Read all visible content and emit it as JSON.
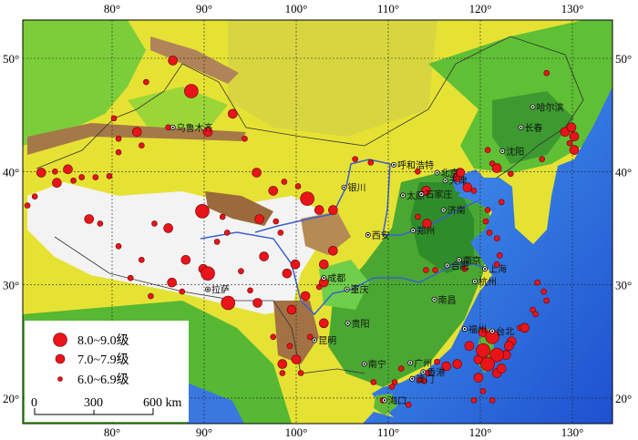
{
  "map": {
    "projection_note_hidden": null,
    "lon_ticks": [
      80,
      90,
      100,
      110,
      120,
      130
    ],
    "lat_ticks": [
      20,
      30,
      40,
      50
    ],
    "lon_labels": [
      "80°",
      "90°",
      "100°",
      "110°",
      "120°",
      "130°"
    ],
    "lat_labels": [
      "20°",
      "30°",
      "40°",
      "50°"
    ],
    "colors": {
      "earthquake": "#e8141a",
      "earthquake_edge": "#6a0000",
      "ocean": "#2f6fe0",
      "lowland": "#3fa52f",
      "plain": "#8fd230",
      "plateau": "#ece63a",
      "high_mountain": "#f2f2f2",
      "desert_brown": "#9b6a3c",
      "river": "#3a5fd0"
    }
  },
  "legend": {
    "items": [
      {
        "label": "8.0~9.0级",
        "class": 3
      },
      {
        "label": "7.0~7.9级",
        "class": 2
      },
      {
        "label": "6.0~6.9级",
        "class": 1
      }
    ],
    "scale_bar": {
      "ticks": [
        "0",
        "300",
        "600 km"
      ]
    }
  },
  "cities": [
    {
      "name": "乌鲁木齐",
      "lon": 86.6,
      "lat": 43.9
    },
    {
      "name": "拉萨",
      "lon": 90.4,
      "lat": 29.6
    },
    {
      "name": "银川",
      "lon": 105.2,
      "lat": 38.6
    },
    {
      "name": "呼和浩特",
      "lon": 110.6,
      "lat": 40.6
    },
    {
      "name": "太原",
      "lon": 111.6,
      "lat": 37.9
    },
    {
      "name": "石家庄",
      "lon": 113.6,
      "lat": 38.0
    },
    {
      "name": "北京",
      "lon": 115.3,
      "lat": 39.9
    },
    {
      "name": "天津",
      "lon": 116.2,
      "lat": 39.2
    },
    {
      "name": "济南",
      "lon": 116.0,
      "lat": 36.6
    },
    {
      "name": "沈阳",
      "lon": 122.4,
      "lat": 41.8
    },
    {
      "name": "长春",
      "lon": 124.4,
      "lat": 43.9
    },
    {
      "name": "哈尔滨",
      "lon": 125.7,
      "lat": 45.7
    },
    {
      "name": "西安",
      "lon": 107.8,
      "lat": 34.4
    },
    {
      "name": "郑州",
      "lon": 112.7,
      "lat": 34.8
    },
    {
      "name": "合肥",
      "lon": 116.4,
      "lat": 31.7
    },
    {
      "name": "南京",
      "lon": 117.7,
      "lat": 32.2
    },
    {
      "name": "上海",
      "lon": 120.5,
      "lat": 31.4
    },
    {
      "name": "杭州",
      "lon": 119.4,
      "lat": 30.3
    },
    {
      "name": "南昌",
      "lon": 115.0,
      "lat": 28.7
    },
    {
      "name": "成都",
      "lon": 103.0,
      "lat": 30.6
    },
    {
      "name": "重庆",
      "lon": 105.5,
      "lat": 29.6
    },
    {
      "name": "贵阳",
      "lon": 105.6,
      "lat": 26.6
    },
    {
      "name": "昆明",
      "lon": 102.0,
      "lat": 25.1
    },
    {
      "name": "福州",
      "lon": 118.3,
      "lat": 26.1
    },
    {
      "name": "台北",
      "lon": 121.3,
      "lat": 25.9
    },
    {
      "name": "南宁",
      "lon": 107.4,
      "lat": 23.0
    },
    {
      "name": "广州",
      "lon": 112.4,
      "lat": 23.1
    },
    {
      "name": "香港",
      "lon": 113.8,
      "lat": 22.3
    },
    {
      "name": "澳门",
      "lon": 112.6,
      "lat": 21.7
    },
    {
      "name": "海口",
      "lon": 109.6,
      "lat": 19.8
    }
  ],
  "earthquakes": [
    {
      "lon": 86.6,
      "lat": 49.8,
      "c": 2
    },
    {
      "lon": 88.6,
      "lat": 47.1,
      "c": 3
    },
    {
      "lon": 93.1,
      "lat": 45.1,
      "c": 2
    },
    {
      "lon": 90.4,
      "lat": 43.5,
      "c": 2
    },
    {
      "lon": 83.7,
      "lat": 47.9,
      "c": 1
    },
    {
      "lon": 80.2,
      "lat": 44.7,
      "c": 1
    },
    {
      "lon": 82.7,
      "lat": 43.5,
      "c": 2
    },
    {
      "lon": 83.2,
      "lat": 42.3,
      "c": 1
    },
    {
      "lon": 86.1,
      "lat": 43.9,
      "c": 1
    },
    {
      "lon": 94.4,
      "lat": 42.9,
      "c": 1
    },
    {
      "lon": 72.3,
      "lat": 39.9,
      "c": 2
    },
    {
      "lon": 73.8,
      "lat": 40.0,
      "c": 1
    },
    {
      "lon": 75.2,
      "lat": 40.2,
      "c": 2
    },
    {
      "lon": 76.7,
      "lat": 39.5,
      "c": 1
    },
    {
      "lon": 78.2,
      "lat": 39.5,
      "c": 1
    },
    {
      "lon": 71.6,
      "lat": 37.8,
      "c": 1
    },
    {
      "lon": 79.7,
      "lat": 39.6,
      "c": 1
    },
    {
      "lon": 70.8,
      "lat": 37.0,
      "c": 1
    },
    {
      "lon": 89.8,
      "lat": 36.5,
      "c": 3
    },
    {
      "lon": 86.1,
      "lat": 35.0,
      "c": 2
    },
    {
      "lon": 84.6,
      "lat": 35.4,
      "c": 1
    },
    {
      "lon": 77.5,
      "lat": 35.8,
      "c": 2
    },
    {
      "lon": 78.7,
      "lat": 35.4,
      "c": 1
    },
    {
      "lon": 95.7,
      "lat": 39.9,
      "c": 2
    },
    {
      "lon": 97.5,
      "lat": 38.3,
      "c": 2
    },
    {
      "lon": 101.2,
      "lat": 37.6,
      "c": 3
    },
    {
      "lon": 102.5,
      "lat": 36.6,
      "c": 2
    },
    {
      "lon": 104.0,
      "lat": 36.6,
      "c": 2
    },
    {
      "lon": 97.8,
      "lat": 35.6,
      "c": 1
    },
    {
      "lon": 96.0,
      "lat": 35.8,
      "c": 2
    },
    {
      "lon": 98.3,
      "lat": 34.6,
      "c": 1
    },
    {
      "lon": 92.5,
      "lat": 34.6,
      "c": 1
    },
    {
      "lon": 91.4,
      "lat": 33.8,
      "c": 1
    },
    {
      "lon": 90.4,
      "lat": 31.0,
      "c": 3
    },
    {
      "lon": 89.9,
      "lat": 31.4,
      "c": 2
    },
    {
      "lon": 88.0,
      "lat": 32.2,
      "c": 2
    },
    {
      "lon": 83.2,
      "lat": 32.2,
      "c": 1
    },
    {
      "lon": 80.7,
      "lat": 33.4,
      "c": 1
    },
    {
      "lon": 84.2,
      "lat": 29.0,
      "c": 1
    },
    {
      "lon": 87.6,
      "lat": 29.4,
      "c": 1
    },
    {
      "lon": 92.6,
      "lat": 28.4,
      "c": 3
    },
    {
      "lon": 95.8,
      "lat": 28.4,
      "c": 2
    },
    {
      "lon": 99.5,
      "lat": 27.8,
      "c": 2
    },
    {
      "lon": 99.0,
      "lat": 31.0,
      "c": 2
    },
    {
      "lon": 99.9,
      "lat": 31.8,
      "c": 2
    },
    {
      "lon": 102.5,
      "lat": 29.8,
      "c": 1
    },
    {
      "lon": 103.0,
      "lat": 30.2,
      "c": 2
    },
    {
      "lon": 103.0,
      "lat": 31.8,
      "c": 2
    },
    {
      "lon": 99.3,
      "lat": 24.6,
      "c": 1
    },
    {
      "lon": 98.5,
      "lat": 23.0,
      "c": 2
    },
    {
      "lon": 100.0,
      "lat": 23.4,
      "c": 2
    },
    {
      "lon": 97.5,
      "lat": 25.4,
      "c": 1
    },
    {
      "lon": 101.5,
      "lat": 25.4,
      "c": 1
    },
    {
      "lon": 103.0,
      "lat": 26.6,
      "c": 2
    },
    {
      "lon": 100.5,
      "lat": 22.2,
      "c": 1
    },
    {
      "lon": 98.5,
      "lat": 22.2,
      "c": 1
    },
    {
      "lon": 106.4,
      "lat": 41.1,
      "c": 1
    },
    {
      "lon": 108.1,
      "lat": 40.8,
      "c": 1
    },
    {
      "lon": 113.2,
      "lat": 40.0,
      "c": 1
    },
    {
      "lon": 117.5,
      "lat": 39.5,
      "c": 2
    },
    {
      "lon": 117.8,
      "lat": 39.9,
      "c": 2
    },
    {
      "lon": 118.6,
      "lat": 38.6,
      "c": 2
    },
    {
      "lon": 114.1,
      "lat": 38.3,
      "c": 2
    },
    {
      "lon": 114.2,
      "lat": 35.4,
      "c": 2
    },
    {
      "lon": 113.2,
      "lat": 36.0,
      "c": 1
    },
    {
      "lon": 120.8,
      "lat": 36.6,
      "c": 1
    },
    {
      "lon": 120.6,
      "lat": 35.6,
      "c": 1
    },
    {
      "lon": 121.0,
      "lat": 34.6,
      "c": 1
    },
    {
      "lon": 121.8,
      "lat": 31.8,
      "c": 1
    },
    {
      "lon": 122.1,
      "lat": 32.6,
      "c": 1
    },
    {
      "lon": 122.3,
      "lat": 37.3,
      "c": 1
    },
    {
      "lon": 121.8,
      "lat": 34.1,
      "c": 1
    },
    {
      "lon": 114.1,
      "lat": 31.3,
      "c": 1
    },
    {
      "lon": 115.1,
      "lat": 31.3,
      "c": 1
    },
    {
      "lon": 118.3,
      "lat": 31.4,
      "c": 1
    },
    {
      "lon": 126.2,
      "lat": 30.2,
      "c": 1
    },
    {
      "lon": 127.2,
      "lat": 28.6,
      "c": 1
    },
    {
      "lon": 126.9,
      "lat": 29.4,
      "c": 1
    },
    {
      "lon": 126.0,
      "lat": 27.4,
      "c": 1
    },
    {
      "lon": 125.7,
      "lat": 27.8,
      "c": 1
    },
    {
      "lon": 124.3,
      "lat": 26.2,
      "c": 1
    },
    {
      "lon": 124.8,
      "lat": 26.2,
      "c": 2
    },
    {
      "lon": 123.4,
      "lat": 25.0,
      "c": 2
    },
    {
      "lon": 123.1,
      "lat": 24.6,
      "c": 2
    },
    {
      "lon": 120.3,
      "lat": 25.8,
      "c": 2
    },
    {
      "lon": 121.3,
      "lat": 25.4,
      "c": 3
    },
    {
      "lon": 120.3,
      "lat": 24.2,
      "c": 3
    },
    {
      "lon": 121.8,
      "lat": 23.8,
      "c": 3
    },
    {
      "lon": 120.8,
      "lat": 23.0,
      "c": 3
    },
    {
      "lon": 119.8,
      "lat": 23.4,
      "c": 2
    },
    {
      "lon": 121.8,
      "lat": 22.2,
      "c": 2
    },
    {
      "lon": 119.8,
      "lat": 21.8,
      "c": 2
    },
    {
      "lon": 120.3,
      "lat": 20.6,
      "c": 1
    },
    {
      "lon": 119.3,
      "lat": 19.8,
      "c": 1
    },
    {
      "lon": 121.3,
      "lat": 19.8,
      "c": 1
    },
    {
      "lon": 122.3,
      "lat": 22.6,
      "c": 2
    },
    {
      "lon": 122.8,
      "lat": 23.8,
      "c": 2
    },
    {
      "lon": 118.8,
      "lat": 24.6,
      "c": 2
    },
    {
      "lon": 116.3,
      "lat": 22.8,
      "c": 2
    },
    {
      "lon": 117.5,
      "lat": 23.0,
      "c": 2
    },
    {
      "lon": 115.3,
      "lat": 23.2,
      "c": 1
    },
    {
      "lon": 114.3,
      "lat": 22.2,
      "c": 1
    },
    {
      "lon": 113.9,
      "lat": 21.5,
      "c": 1
    },
    {
      "lon": 111.4,
      "lat": 22.6,
      "c": 1
    },
    {
      "lon": 110.7,
      "lat": 21.4,
      "c": 1
    },
    {
      "lon": 110.4,
      "lat": 21.0,
      "c": 1
    },
    {
      "lon": 108.4,
      "lat": 21.4,
      "c": 1
    },
    {
      "lon": 109.4,
      "lat": 19.8,
      "c": 1
    },
    {
      "lon": 112.2,
      "lat": 19.4,
      "c": 1
    },
    {
      "lon": 113.4,
      "lat": 21.6,
      "c": 1
    },
    {
      "lon": 127.2,
      "lat": 48.7,
      "c": 1
    },
    {
      "lon": 129.2,
      "lat": 43.5,
      "c": 2
    },
    {
      "lon": 129.9,
      "lat": 43.9,
      "c": 2
    },
    {
      "lon": 130.2,
      "lat": 43.1,
      "c": 2
    },
    {
      "lon": 129.7,
      "lat": 42.5,
      "c": 1
    },
    {
      "lon": 130.2,
      "lat": 41.9,
      "c": 2
    },
    {
      "lon": 126.7,
      "lat": 41.1,
      "c": 1
    },
    {
      "lon": 120.8,
      "lat": 41.9,
      "c": 1
    },
    {
      "lon": 121.3,
      "lat": 40.7,
      "c": 1
    },
    {
      "lon": 121.8,
      "lat": 40.3,
      "c": 2
    },
    {
      "lon": 123.3,
      "lat": 39.8,
      "c": 1
    },
    {
      "lon": 119.3,
      "lat": 38.3,
      "c": 1
    },
    {
      "lon": 100.2,
      "lat": 38.7,
      "c": 1
    },
    {
      "lon": 98.7,
      "lat": 39.1,
      "c": 1
    },
    {
      "lon": 80.7,
      "lat": 42.9,
      "c": 1
    },
    {
      "lon": 80.7,
      "lat": 41.7,
      "c": 1
    },
    {
      "lon": 74.0,
      "lat": 39.0,
      "c": 2
    },
    {
      "lon": 75.8,
      "lat": 39.2,
      "c": 1
    },
    {
      "lon": 94.0,
      "lat": 31.2,
      "c": 1
    },
    {
      "lon": 96.5,
      "lat": 32.5,
      "c": 2
    },
    {
      "lon": 101.0,
      "lat": 29.0,
      "c": 2
    },
    {
      "lon": 95.0,
      "lat": 29.5,
      "c": 1
    },
    {
      "lon": 86.5,
      "lat": 30.2,
      "c": 2
    },
    {
      "lon": 82.0,
      "lat": 30.6,
      "c": 1
    },
    {
      "lon": 92.0,
      "lat": 36.0,
      "c": 1
    },
    {
      "lon": 104.0,
      "lat": 33.0,
      "c": 2
    }
  ]
}
